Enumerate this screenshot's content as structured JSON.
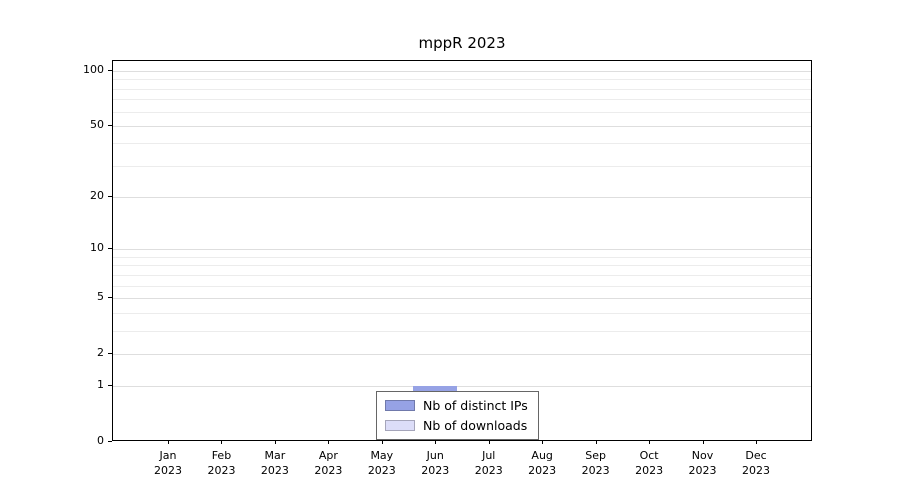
{
  "title": "mppR 2023",
  "chart_data": {
    "type": "bar",
    "title": "mppR 2023",
    "xlabel": "",
    "ylabel": "",
    "scale": "log10(1+y)",
    "ylim": [
      0,
      100
    ],
    "grid": "horizontal",
    "legend_position": "bottom-center",
    "xticks": [
      {
        "label": "Jan",
        "sublabel": "2023"
      },
      {
        "label": "Feb",
        "sublabel": "2023"
      },
      {
        "label": "Mar",
        "sublabel": "2023"
      },
      {
        "label": "Apr",
        "sublabel": "2023"
      },
      {
        "label": "May",
        "sublabel": "2023"
      },
      {
        "label": "Jun",
        "sublabel": "2023"
      },
      {
        "label": "Jul",
        "sublabel": "2023"
      },
      {
        "label": "Aug",
        "sublabel": "2023"
      },
      {
        "label": "Sep",
        "sublabel": "2023"
      },
      {
        "label": "Oct",
        "sublabel": "2023"
      },
      {
        "label": "Nov",
        "sublabel": "2023"
      },
      {
        "label": "Dec",
        "sublabel": "2023"
      }
    ],
    "yticks": [
      0,
      1,
      2,
      5,
      10,
      20,
      50,
      100
    ],
    "minor_gridlines": [
      3,
      4,
      6,
      7,
      8,
      9,
      30,
      40,
      60,
      70,
      80,
      90
    ],
    "series": [
      {
        "name": "Nb of distinct IPs",
        "color": "#96A2E5",
        "values": [
          0,
          0,
          0,
          0,
          0,
          1,
          0,
          0,
          0,
          0,
          0,
          0
        ]
      },
      {
        "name": "Nb of downloads",
        "color": "#DCDDF8",
        "values": [
          0,
          0,
          0,
          0,
          0,
          1,
          0,
          0,
          0,
          0,
          0,
          0
        ]
      }
    ]
  },
  "legend": {
    "items": [
      {
        "label": "Nb of distinct IPs",
        "color": "#96A2E5"
      },
      {
        "label": "Nb of downloads",
        "color": "#DCDDF8"
      }
    ]
  }
}
